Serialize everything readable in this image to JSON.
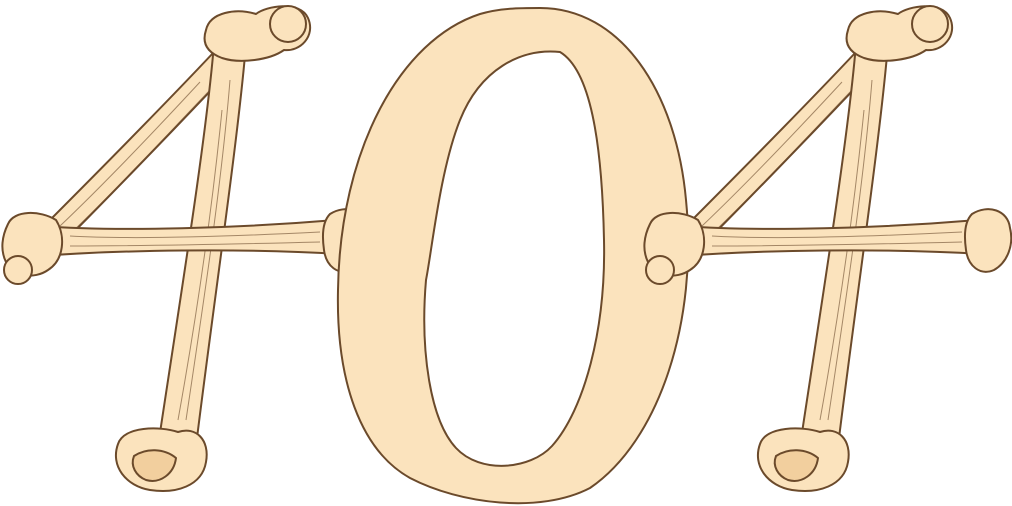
{
  "error_graphic": {
    "code_text": "404",
    "colors": {
      "bone_fill": "#fbe3bd",
      "bone_shade": "#f2cf9e",
      "outline": "#6b4a2b",
      "background": "#ffffff"
    },
    "glyphs": [
      "4",
      "0",
      "4"
    ]
  }
}
